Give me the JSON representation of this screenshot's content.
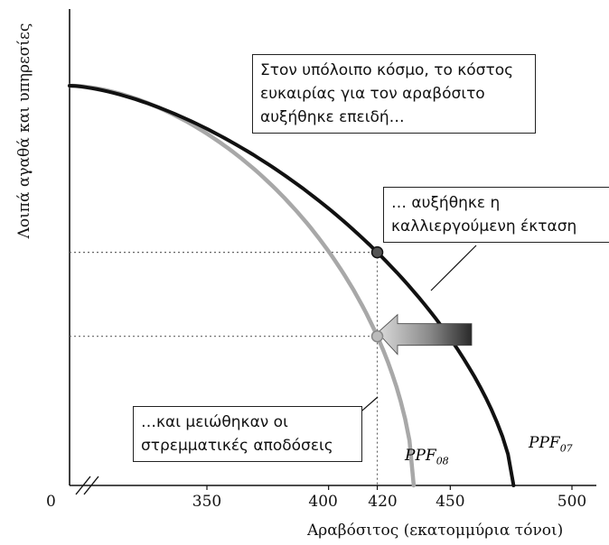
{
  "chart_data": {
    "type": "line",
    "title": "",
    "xlabel": "Αραβόσιτος (εκατομμύρια τόνοι)",
    "ylabel": "Λοιπά αγαθά και υπηρεσίες",
    "x_origin_label": "0",
    "x_ticks": [
      "350",
      "400",
      "420",
      "450",
      "500"
    ],
    "x_tick_values": [
      350,
      400,
      420,
      450,
      500
    ],
    "xlim": [
      310,
      520
    ],
    "axis_break": true,
    "series": [
      {
        "name": "PPF_07",
        "label_main": "PPF",
        "label_sub": "07",
        "color": "#111111",
        "x_intercept": 476
      },
      {
        "name": "PPF_08",
        "label_main": "PPF",
        "label_sub": "08",
        "color": "#a8a8a8",
        "x_intercept": 435
      }
    ],
    "points": [
      {
        "x": 420,
        "series": "PPF_07"
      },
      {
        "x": 420,
        "series": "PPF_08"
      }
    ],
    "shift_arrow_direction": "left",
    "annotations": [
      {
        "id": "top",
        "lines": [
          "Στον υπόλοιπο κόσμο, το κόστος",
          "ευκαιρίας για τον αραβόσιτο",
          "αυξήθηκε επειδή…"
        ]
      },
      {
        "id": "mid",
        "lines": [
          "… αυξήθηκε η",
          "καλλιεργούμενη έκταση"
        ]
      },
      {
        "id": "low",
        "lines": [
          "…και μειώθηκαν οι",
          "στρεμματικές αποδόσεις"
        ]
      }
    ]
  }
}
